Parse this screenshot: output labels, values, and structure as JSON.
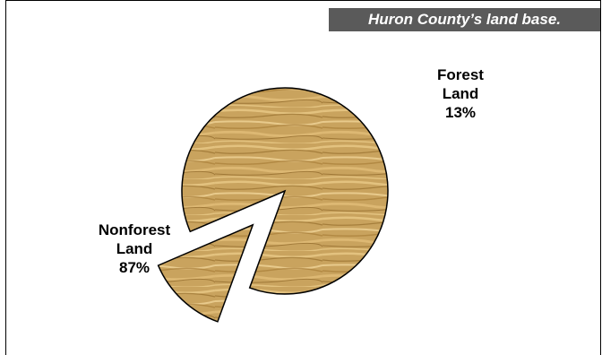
{
  "chart_data": {
    "type": "pie",
    "title": "Huron County’s land base.",
    "slices": [
      {
        "label_lines": [
          "Forest",
          "Land",
          "13%"
        ],
        "value": 13,
        "exploded": true
      },
      {
        "label_lines": [
          "Nonforest",
          "Land",
          "87%"
        ],
        "value": 87,
        "exploded": false
      }
    ],
    "colors": {
      "wood_base": "#c9a35e",
      "wood_light": "#e3c27f",
      "wood_dark": "#9c7432",
      "outline": "#000000",
      "banner_bg": "#5a5a5a"
    }
  }
}
